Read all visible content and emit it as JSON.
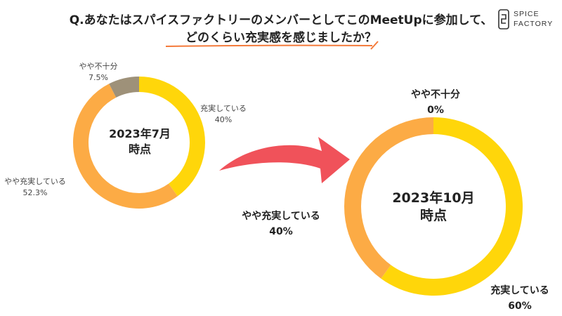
{
  "title": {
    "line1": "Q.あなたはスパイスファクトリーのメンバーとしてこのMeetUpに参加して、",
    "line2": "どのくらい充実感を感じましたか？"
  },
  "logo": {
    "line1": "SPICE",
    "line2": "FACTORY"
  },
  "colors": {
    "yellow": "#FFD60A",
    "orange": "#FCAB45",
    "gray": "#9E9179",
    "arrow": "#F0525A",
    "underline": "#F47A3A"
  },
  "chart_data": [
    {
      "type": "donut",
      "center_label": [
        "2023年7月",
        "時点"
      ],
      "categories": [
        "充実している",
        "やや充実している",
        "やや不十分"
      ],
      "values": [
        40,
        52.3,
        7.5
      ],
      "value_labels": [
        "40%",
        "52.3%",
        "7.5%"
      ]
    },
    {
      "type": "donut",
      "center_label": [
        "2023年10月",
        "時点"
      ],
      "categories": [
        "充実している",
        "やや充実している",
        "やや不十分"
      ],
      "values": [
        60,
        40,
        0
      ],
      "value_labels": [
        "60%",
        "40%",
        "0%"
      ]
    }
  ]
}
